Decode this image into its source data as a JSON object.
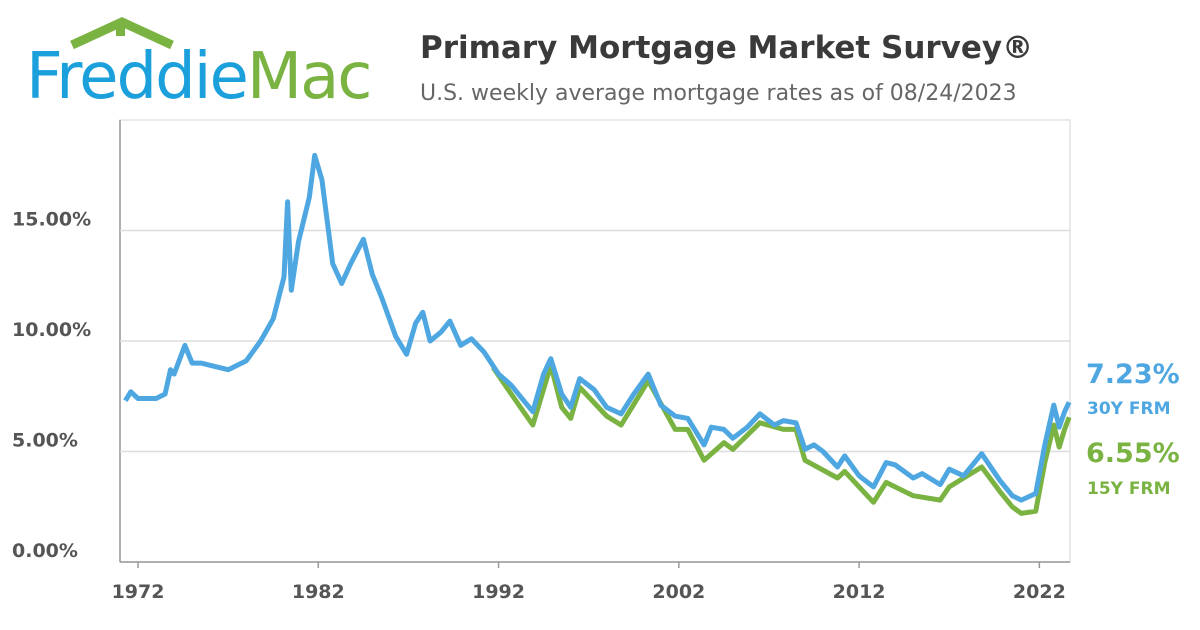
{
  "logo": {
    "parts": [
      "Freddie",
      "Mac"
    ]
  },
  "chart_data": {
    "type": "line",
    "title": "Primary Mortgage Market Survey®",
    "subtitle": "U.S. weekly average mortgage rates as of 08/24/2023",
    "xlim": [
      1971,
      2023.7
    ],
    "xticks": [
      1972,
      1982,
      1992,
      2002,
      2012,
      2022
    ],
    "ylim": [
      0,
      20
    ],
    "yticks": [
      {
        "value": 0,
        "label": "0.00%"
      },
      {
        "value": 5,
        "label": "5.00%"
      },
      {
        "value": 10,
        "label": "10.00%"
      },
      {
        "value": 15,
        "label": "15.00%"
      }
    ],
    "grid": true,
    "series": [
      {
        "name": "15Y FRM",
        "color": "#7ab342",
        "x": [
          1991.7,
          1992.7,
          1993.9,
          1994.9,
          1995.5,
          1996,
          1996.5,
          1998,
          1998.8,
          2000.3,
          2001.8,
          2002.5,
          2003.4,
          2004.5,
          2005,
          2006.5,
          2007.8,
          2008.5,
          2009,
          2010.8,
          2011.2,
          2012.8,
          2013.5,
          2014,
          2015,
          2016.5,
          2017,
          2018.8,
          2019.8,
          2020.5,
          2021,
          2021.8,
          2022.3,
          2022.8,
          2023.1,
          2023.4,
          2023.65
        ],
        "values": [
          8.8,
          7.6,
          6.2,
          8.9,
          7.0,
          6.5,
          7.9,
          6.6,
          6.2,
          8.2,
          6.0,
          6.0,
          4.6,
          5.4,
          5.1,
          6.3,
          6.0,
          6.0,
          4.6,
          3.8,
          4.1,
          2.7,
          3.6,
          3.4,
          3.0,
          2.8,
          3.4,
          4.3,
          3.2,
          2.5,
          2.2,
          2.3,
          4.5,
          6.2,
          5.2,
          6.0,
          6.55
        ],
        "value_labels": [
          null,
          null,
          null,
          null,
          null,
          null,
          null,
          null,
          null,
          null,
          null,
          null,
          null,
          null,
          null,
          null,
          null,
          null,
          null,
          null,
          null,
          null,
          null,
          null,
          null,
          null,
          null,
          null,
          null,
          null,
          null,
          null,
          null,
          null,
          null,
          null,
          "6.55%"
        ]
      },
      {
        "name": "30Y FRM",
        "color": "#4ea7e1",
        "x": [
          1971.3,
          1971.6,
          1972,
          1973,
          1973.5,
          1973.8,
          1974,
          1974.6,
          1975,
          1975.5,
          1976,
          1977,
          1978,
          1978.8,
          1979.5,
          1980.1,
          1980.3,
          1980.5,
          1980.9,
          1981.5,
          1981.8,
          1982.2,
          1982.8,
          1983.3,
          1983.8,
          1984.5,
          1985,
          1985.5,
          1986.3,
          1986.9,
          1987.4,
          1987.8,
          1988.2,
          1988.8,
          1989.3,
          1989.9,
          1990.5,
          1991.2,
          1992,
          1992.7,
          1993.5,
          1993.9,
          1994.5,
          1994.9,
          1995.5,
          1996,
          1996.5,
          1997.3,
          1998,
          1998.8,
          1999.5,
          2000.3,
          2001,
          2001.8,
          2002.5,
          2003.4,
          2003.8,
          2004.5,
          2005,
          2005.8,
          2006.5,
          2007.3,
          2007.8,
          2008.5,
          2009,
          2009.5,
          2010,
          2010.8,
          2011.2,
          2012,
          2012.8,
          2013.5,
          2014,
          2015,
          2015.5,
          2016.5,
          2017,
          2017.8,
          2018.8,
          2019.8,
          2020.5,
          2021,
          2021.8,
          2022.3,
          2022.8,
          2023.1,
          2023.4,
          2023.65
        ],
        "values": [
          7.3,
          7.7,
          7.4,
          7.4,
          7.6,
          8.7,
          8.5,
          9.8,
          9.0,
          9.0,
          8.9,
          8.7,
          9.1,
          10.0,
          11.0,
          12.9,
          16.3,
          12.3,
          14.5,
          16.5,
          18.4,
          17.3,
          13.5,
          12.6,
          13.5,
          14.6,
          13.0,
          12.0,
          10.2,
          9.4,
          10.8,
          11.3,
          10.0,
          10.4,
          10.9,
          9.8,
          10.1,
          9.5,
          8.5,
          8.0,
          7.2,
          6.8,
          8.5,
          9.2,
          7.6,
          7.0,
          8.3,
          7.8,
          7.0,
          6.7,
          7.6,
          8.5,
          7.1,
          6.6,
          6.5,
          5.3,
          6.1,
          6.0,
          5.6,
          6.1,
          6.7,
          6.2,
          6.4,
          6.3,
          5.1,
          5.3,
          5.0,
          4.3,
          4.8,
          3.9,
          3.4,
          4.5,
          4.4,
          3.8,
          4.0,
          3.5,
          4.2,
          3.9,
          4.9,
          3.7,
          3.0,
          2.8,
          3.1,
          5.3,
          7.1,
          6.1,
          6.8,
          7.23
        ],
        "value_labels": [
          null,
          null,
          null,
          null,
          null,
          null,
          null,
          null,
          null,
          null,
          null,
          null,
          null,
          null,
          null,
          null,
          null,
          null,
          null,
          null,
          null,
          null,
          null,
          null,
          null,
          null,
          null,
          null,
          null,
          null,
          null,
          null,
          null,
          null,
          null,
          null,
          null,
          null,
          null,
          null,
          null,
          null,
          null,
          null,
          null,
          null,
          null,
          null,
          null,
          null,
          null,
          null,
          null,
          null,
          null,
          null,
          null,
          null,
          null,
          null,
          null,
          null,
          null,
          null,
          null,
          null,
          null,
          null,
          null,
          null,
          null,
          null,
          null,
          null,
          null,
          null,
          null,
          null,
          null,
          null,
          null,
          null,
          null,
          null,
          null,
          null,
          null,
          "7.23%"
        ]
      }
    ]
  }
}
